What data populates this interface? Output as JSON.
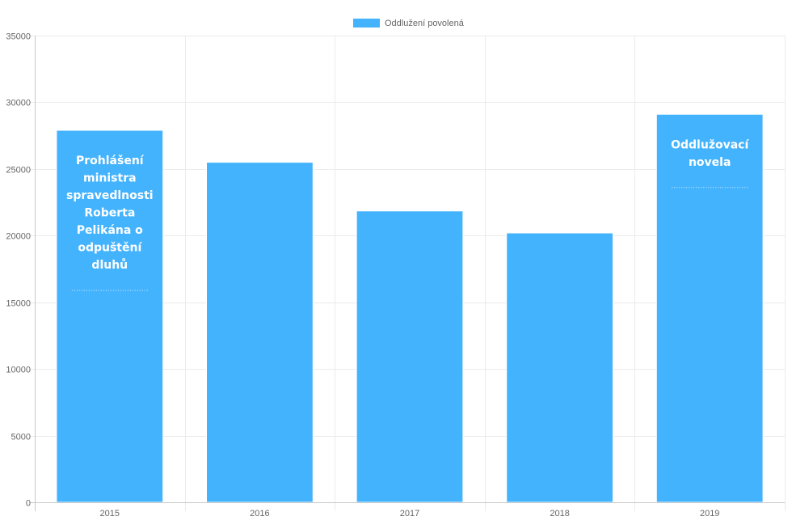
{
  "chart_data": {
    "type": "bar",
    "categories": [
      "2015",
      "2016",
      "2017",
      "2018",
      "2019"
    ],
    "series": [
      {
        "name": "Oddlužení povolená",
        "color": "#44b3fd",
        "values": [
          27900,
          25500,
          21850,
          20200,
          29100
        ]
      }
    ],
    "ylim": [
      0,
      35000
    ],
    "yticks": [
      0,
      5000,
      10000,
      15000,
      20000,
      25000,
      30000,
      35000
    ],
    "grid": true,
    "legend_position": "top-center",
    "annotations": [
      {
        "category": "2015",
        "lines": [
          "Prohlášení",
          "ministra",
          "spravedlnosti",
          "Roberta",
          "Pelikána o",
          "odpuštění",
          "dluhů"
        ]
      },
      {
        "category": "2019",
        "lines": [
          "Oddlužovací",
          "novela"
        ]
      }
    ]
  }
}
